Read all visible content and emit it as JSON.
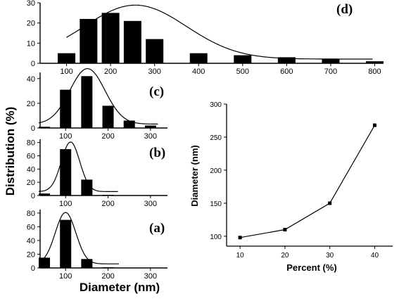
{
  "chart_data": [
    {
      "type": "bar",
      "panel_label": "(d)",
      "x": [
        100,
        150,
        200,
        250,
        300,
        400,
        500,
        600,
        700,
        800
      ],
      "values": [
        5,
        22,
        25,
        21,
        12,
        5,
        4,
        3,
        2,
        1
      ],
      "fit_curve": true,
      "xlim": [
        40,
        820
      ],
      "ylim": [
        0,
        30
      ],
      "xticks": [
        100,
        200,
        300,
        400,
        500,
        600,
        700,
        800
      ],
      "yticks": [
        0,
        10,
        20,
        30
      ],
      "bar_color": "#000000"
    },
    {
      "type": "bar",
      "panel_label": "(c)",
      "x": [
        50,
        100,
        150,
        200,
        250,
        300
      ],
      "values": [
        1,
        31,
        42,
        18,
        6,
        2
      ],
      "fit_curve": true,
      "xlim": [
        40,
        340
      ],
      "ylim": [
        0,
        45
      ],
      "xticks": [
        100,
        200,
        300
      ],
      "yticks": [
        0,
        20,
        40
      ],
      "bar_color": "#000000"
    },
    {
      "type": "bar",
      "panel_label": "(b)",
      "x": [
        50,
        100,
        150,
        200
      ],
      "values": [
        3,
        70,
        24,
        1
      ],
      "fit_curve": true,
      "xlim": [
        40,
        340
      ],
      "ylim": [
        0,
        85
      ],
      "xticks": [
        100,
        200,
        300
      ],
      "yticks": [
        0,
        20,
        40,
        60,
        80
      ],
      "bar_color": "#000000"
    },
    {
      "type": "bar",
      "panel_label": "(a)",
      "x": [
        50,
        100,
        150,
        200
      ],
      "values": [
        15,
        70,
        13,
        1
      ],
      "fit_curve": true,
      "xlim": [
        40,
        340
      ],
      "ylim": [
        0,
        85
      ],
      "xticks": [
        100,
        200,
        300
      ],
      "yticks": [
        0,
        20,
        40,
        60,
        80
      ],
      "bar_color": "#000000"
    },
    {
      "type": "line",
      "x": [
        10,
        20,
        30,
        40
      ],
      "y": [
        98,
        110,
        150,
        268
      ],
      "xlabel": "Percent (%)",
      "ylabel": "Diameter (nm)",
      "xlim": [
        7,
        44
      ],
      "ylim": [
        85,
        300
      ],
      "xticks": [
        10,
        20,
        30,
        40
      ],
      "yticks": [
        100,
        150,
        200,
        250,
        300
      ],
      "marker": "square",
      "line_color": "#000000"
    }
  ],
  "shared_labels": {
    "ylabel": "Distribution (%)",
    "xlabel": "Diameter (nm)"
  }
}
